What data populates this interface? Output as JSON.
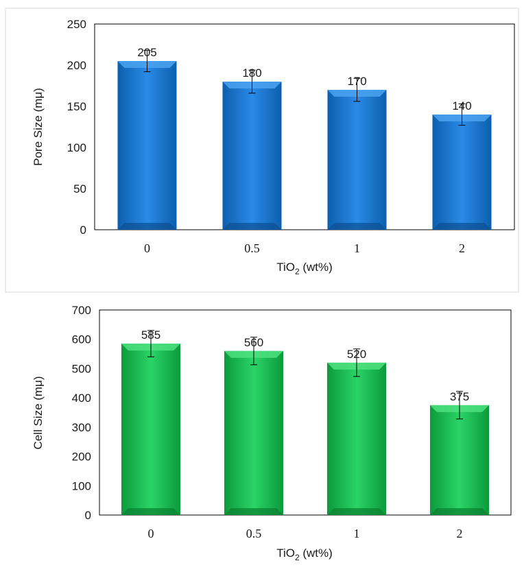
{
  "chart_data": [
    {
      "type": "bar",
      "categories": [
        "0",
        "0.5",
        "1",
        "2"
      ],
      "values": [
        205,
        180,
        170,
        140
      ],
      "error_bars": [
        13,
        14,
        14,
        13
      ],
      "data_labels": [
        "205",
        "180",
        "170",
        "140"
      ],
      "yticks": [
        "0",
        "50",
        "100",
        "150",
        "200",
        "250"
      ],
      "ylim": [
        0,
        250
      ],
      "ylabel": "Pore Size (mμ)",
      "xlabel_main": "TiO",
      "xlabel_sub": "2",
      "xlabel_rest": " (wt%)",
      "bar_color": "#1f77d0",
      "grid": false
    },
    {
      "type": "bar",
      "categories": [
        "0",
        "0.5",
        "1",
        "2"
      ],
      "values": [
        585,
        560,
        520,
        375
      ],
      "error_bars": [
        45,
        47,
        47,
        47
      ],
      "data_labels": [
        "585",
        "560",
        "520",
        "375"
      ],
      "yticks": [
        "0",
        "100",
        "200",
        "300",
        "400",
        "500",
        "600",
        "700"
      ],
      "ylim": [
        0,
        700
      ],
      "ylabel": "Cell Size (mμ)",
      "xlabel_main": "TiO",
      "xlabel_sub": "2",
      "xlabel_rest": " (wt%)",
      "bar_color": "#18b850",
      "grid": false
    }
  ]
}
